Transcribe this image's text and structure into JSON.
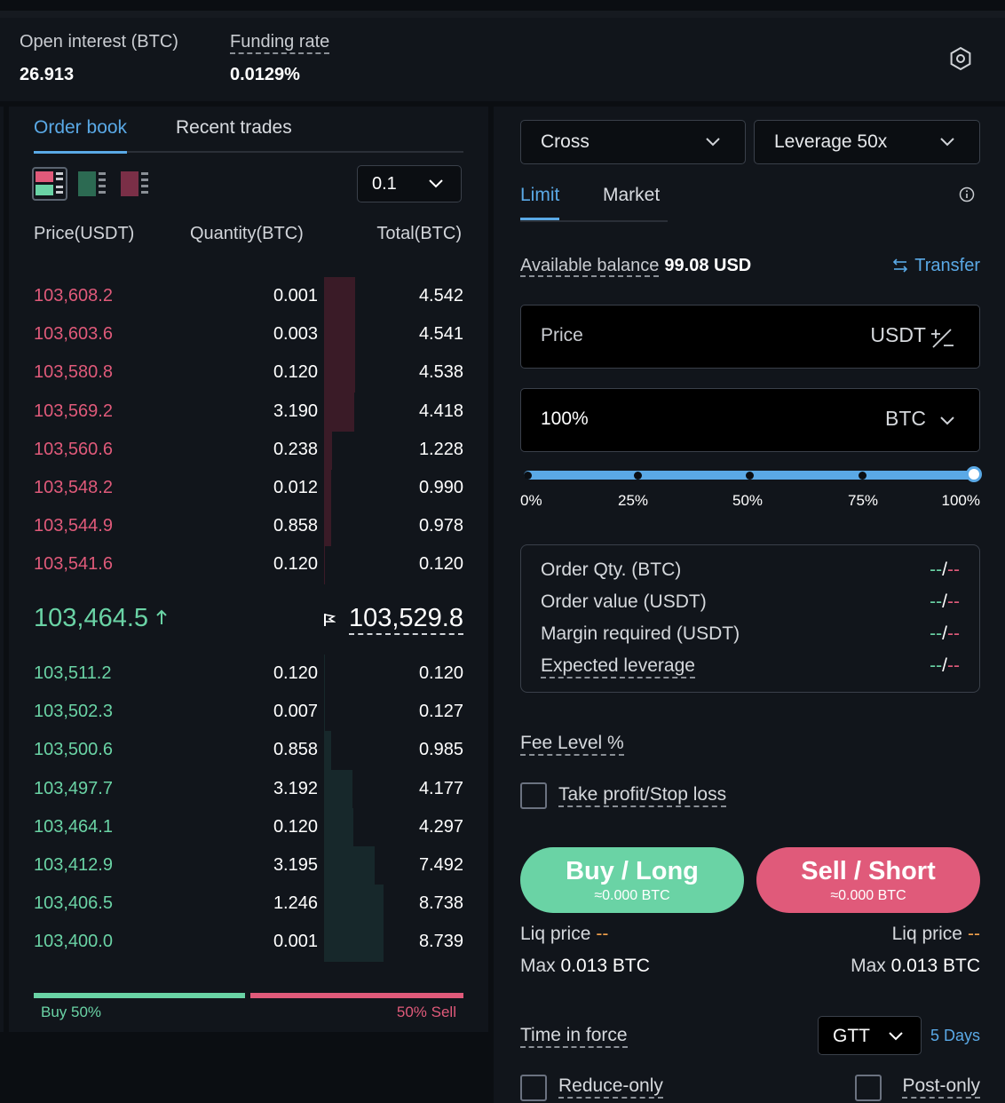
{
  "stats": {
    "open_interest_label": "Open interest (BTC)",
    "open_interest_value": "26.913",
    "funding_label": "Funding rate",
    "funding_value": "0.0129%"
  },
  "orderbook": {
    "tabs": [
      "Order book",
      "Recent trades"
    ],
    "precision": "0.1",
    "headers": {
      "price": "Price(USDT)",
      "qty": "Quantity(BTC)",
      "total": "Total(BTC)"
    },
    "asks": [
      {
        "price": "103,608.2",
        "qty": "0.001",
        "total": "4.542",
        "depth": 0.52
      },
      {
        "price": "103,603.6",
        "qty": "0.003",
        "total": "4.541",
        "depth": 0.52
      },
      {
        "price": "103,580.8",
        "qty": "0.120",
        "total": "4.538",
        "depth": 0.519
      },
      {
        "price": "103,569.2",
        "qty": "3.190",
        "total": "4.418",
        "depth": 0.506
      },
      {
        "price": "103,560.6",
        "qty": "0.238",
        "total": "1.228",
        "depth": 0.14
      },
      {
        "price": "103,548.2",
        "qty": "0.012",
        "total": "0.990",
        "depth": 0.113
      },
      {
        "price": "103,544.9",
        "qty": "0.858",
        "total": "0.978",
        "depth": 0.112
      },
      {
        "price": "103,541.6",
        "qty": "0.120",
        "total": "0.120",
        "depth": 0.014
      }
    ],
    "last_price": "103,464.5",
    "mark_price": "103,529.8",
    "bids": [
      {
        "price": "103,511.2",
        "qty": "0.120",
        "total": "0.120",
        "depth": 0.014
      },
      {
        "price": "103,502.3",
        "qty": "0.007",
        "total": "0.127",
        "depth": 0.015
      },
      {
        "price": "103,500.6",
        "qty": "0.858",
        "total": "0.985",
        "depth": 0.113
      },
      {
        "price": "103,497.7",
        "qty": "3.192",
        "total": "4.177",
        "depth": 0.478
      },
      {
        "price": "103,464.1",
        "qty": "0.120",
        "total": "4.297",
        "depth": 0.492
      },
      {
        "price": "103,412.9",
        "qty": "3.195",
        "total": "7.492",
        "depth": 0.857
      },
      {
        "price": "103,406.5",
        "qty": "1.246",
        "total": "8.738",
        "depth": 1.0
      },
      {
        "price": "103,400.0",
        "qty": "0.001",
        "total": "8.739",
        "depth": 1.0
      }
    ],
    "buy_ratio_label": "Buy 50%",
    "sell_ratio_label": "50% Sell",
    "buy_ratio": 0.5
  },
  "trade": {
    "margin_mode": "Cross",
    "leverage_label": "Leverage",
    "leverage_value": "50x",
    "order_tabs": [
      "Limit",
      "Market"
    ],
    "available_label": "Available balance",
    "available_value": "99.08 USD",
    "transfer_label": "Transfer",
    "price_label": "Price",
    "price_unit": "USDT",
    "size_value": "100%",
    "size_unit": "BTC",
    "slider_value": 1.0,
    "slider_marks": [
      "0%",
      "25%",
      "50%",
      "75%",
      "100%"
    ],
    "summary": [
      {
        "label": "Order Qty. (BTC)",
        "a": "--",
        "sep": "/",
        "b": "--"
      },
      {
        "label": "Order value (USDT)",
        "a": "--",
        "sep": "/",
        "b": "--"
      },
      {
        "label": "Margin required (USDT)",
        "a": "--",
        "sep": "/",
        "b": "--"
      },
      {
        "label": "Expected leverage",
        "a": "--",
        "sep": "/",
        "b": "--"
      }
    ],
    "fee_label": "Fee Level %",
    "tpsl_label": "Take profit/Stop loss",
    "buy_label": "Buy / Long",
    "buy_sub": "≈0.000 BTC",
    "sell_label": "Sell / Short",
    "sell_sub": "≈0.000 BTC",
    "liq_label": "Liq price",
    "liq_value": "--",
    "max_label": "Max",
    "max_value": "0.013 BTC",
    "tif_label": "Time in force",
    "tif_value": "GTT",
    "tif_days": "5 Days",
    "reduce_only": "Reduce-only",
    "post_only": "Post-only"
  },
  "colors": {
    "accent": "#5aa9e6",
    "buy": "#6ad3a5",
    "sell": "#e05a7a",
    "warn": "#f0a04b"
  }
}
